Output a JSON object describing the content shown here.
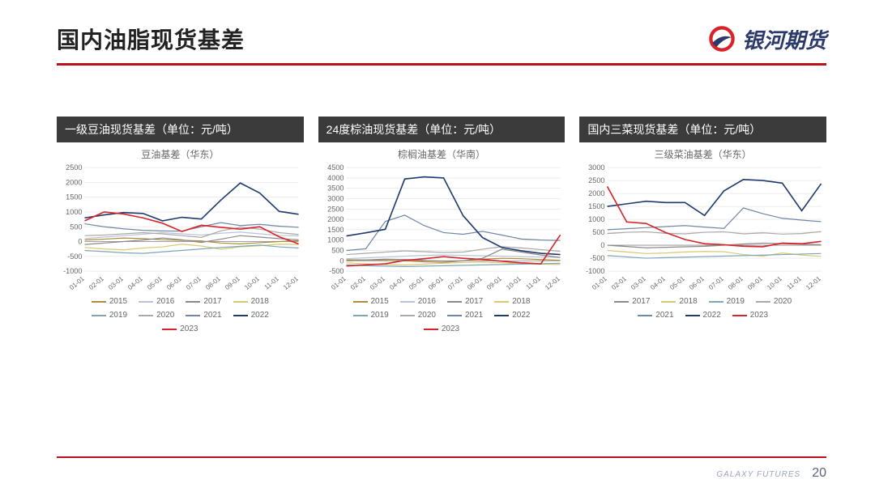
{
  "page": {
    "title": "国内油脂现货基差",
    "brand_name": "银河期货",
    "footer_brand": "GALAXY FUTURES",
    "page_number": "20",
    "accent_color": "#b5121b",
    "logo_colors": {
      "ring": "#d8232a",
      "swoosh": "#2b3a6b"
    }
  },
  "x_labels": [
    "01-01",
    "02-01",
    "03-01",
    "04-01",
    "05-01",
    "06-01",
    "07-01",
    "08-01",
    "09-01",
    "10-01",
    "11-01",
    "12-01"
  ],
  "series_colors": {
    "2015": "#b28a3e",
    "2016": "#b9c4d8",
    "2017": "#8a8a8a",
    "2018": "#d9c96f",
    "2019": "#7ea6b8",
    "2020": "#a9a9a9",
    "2021": "#6f87a6",
    "2022": "#1f3a6e",
    "2023": "#d8232a"
  },
  "chart_style": {
    "background": "#ffffff",
    "grid_color": "#e0e0e0",
    "axis_color": "#888888",
    "tick_fontsize": 8,
    "ylabel_fontsize": 9,
    "line_width": 1.2,
    "title_bg": "#3b3b3b",
    "title_color": "#ffffff",
    "title_fontsize": 14,
    "subtitle_fontsize": 12,
    "subtitle_color": "#666666"
  },
  "charts": [
    {
      "id": "soy",
      "title": "一级豆油现货基差（单位：元/吨）",
      "subtitle": "豆油基差（华东）",
      "ylim": [
        -1000,
        2500
      ],
      "ytick_step": 500,
      "years": [
        "2015",
        "2016",
        "2017",
        "2018",
        "2019",
        "2020",
        "2021",
        "2022",
        "2023"
      ],
      "series": {
        "2015": [
          50,
          80,
          120,
          100,
          60,
          40,
          20,
          -50,
          -80,
          -40,
          0,
          30
        ],
        "2016": [
          100,
          150,
          200,
          250,
          300,
          260,
          220,
          280,
          320,
          260,
          210,
          190
        ],
        "2017": [
          -100,
          -50,
          0,
          50,
          120,
          60,
          -30,
          80,
          200,
          150,
          100,
          60
        ],
        "2018": [
          -200,
          -250,
          -280,
          -220,
          -180,
          -90,
          -150,
          -260,
          -180,
          -140,
          -90,
          -100
        ],
        "2019": [
          -300,
          -340,
          -380,
          -400,
          -350,
          -300,
          -250,
          -200,
          -160,
          -120,
          -180,
          -220
        ],
        "2020": [
          200,
          220,
          260,
          300,
          260,
          200,
          140,
          360,
          480,
          420,
          300,
          240
        ],
        "2021": [
          600,
          500,
          430,
          380,
          360,
          350,
          500,
          640,
          540,
          580,
          520,
          480
        ],
        "2022": [
          800,
          900,
          980,
          950,
          700,
          820,
          760,
          1400,
          1980,
          1640,
          1020,
          920
        ],
        "2023": [
          700,
          1000,
          930,
          800,
          620,
          340,
          550,
          480,
          420,
          500,
          160,
          -80
        ]
      }
    },
    {
      "id": "palm",
      "title": "24度棕油现货基差（单位：元/吨）",
      "subtitle": "棕榈油基差（华南）",
      "ylim": [
        -500,
        4500
      ],
      "ytick_step": 500,
      "years": [
        "2015",
        "2016",
        "2017",
        "2018",
        "2019",
        "2020",
        "2021",
        "2022",
        "2023"
      ],
      "series": {
        "2015": [
          50,
          40,
          20,
          0,
          -50,
          -80,
          0,
          80,
          120,
          100,
          60,
          20
        ],
        "2016": [
          100,
          140,
          180,
          220,
          260,
          280,
          260,
          240,
          220,
          200,
          180,
          160
        ],
        "2017": [
          0,
          40,
          80,
          60,
          20,
          -20,
          0,
          120,
          560,
          420,
          280,
          160
        ],
        "2018": [
          -100,
          -150,
          -180,
          -200,
          -160,
          -120,
          -80,
          -60,
          -100,
          -140,
          -160,
          -180
        ],
        "2019": [
          -200,
          -240,
          -260,
          -280,
          -260,
          -240,
          -220,
          -200,
          -180,
          -160,
          -140,
          -120
        ],
        "2020": [
          300,
          360,
          420,
          480,
          440,
          400,
          420,
          560,
          680,
          620,
          540,
          460
        ],
        "2021": [
          500,
          580,
          1900,
          2200,
          1700,
          1360,
          1280,
          1420,
          1240,
          1050,
          1000,
          980
        ],
        "2022": [
          1200,
          1350,
          1520,
          3950,
          4050,
          4000,
          2180,
          1120,
          640,
          480,
          360,
          300
        ],
        "2023": [
          -250,
          -200,
          -150,
          20,
          100,
          200,
          120,
          60,
          -20,
          -100,
          -150,
          1250
        ]
      }
    },
    {
      "id": "rape",
      "title": "国内三菜现货基差（单位：元/吨）",
      "subtitle": "三级菜油基差（华东）",
      "ylim": [
        -1000,
        3000
      ],
      "ytick_step": 500,
      "years": [
        "2017",
        "2018",
        "2019",
        "2020",
        "2021",
        "2022",
        "2023"
      ],
      "series": {
        "2017": [
          0,
          -50,
          -100,
          -80,
          -60,
          -40,
          0,
          50,
          80,
          60,
          40,
          20
        ],
        "2018": [
          -200,
          -260,
          -320,
          -300,
          -260,
          -240,
          -250,
          -360,
          -420,
          -300,
          -380,
          -430
        ],
        "2019": [
          -400,
          -450,
          -500,
          -480,
          -460,
          -440,
          -420,
          -400,
          -380,
          -360,
          -340,
          -320
        ],
        "2020": [
          450,
          500,
          520,
          460,
          440,
          500,
          520,
          440,
          480,
          430,
          450,
          530
        ],
        "2021": [
          600,
          640,
          680,
          720,
          760,
          700,
          650,
          1440,
          1220,
          1040,
          970,
          910
        ],
        "2022": [
          1500,
          1600,
          1700,
          1650,
          1650,
          1150,
          2100,
          2540,
          2500,
          2400,
          1330,
          2380
        ],
        "2023": [
          2270,
          900,
          840,
          490,
          220,
          60,
          20,
          -40,
          -60,
          80,
          60,
          150
        ]
      }
    }
  ]
}
